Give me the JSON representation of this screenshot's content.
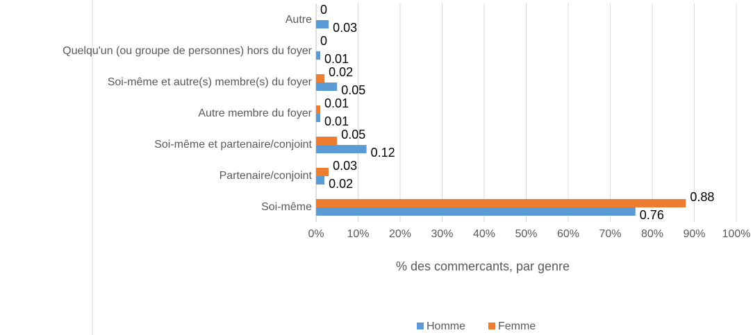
{
  "chart_data": {
    "type": "hbar",
    "categories": [
      "Autre",
      "Quelqu'un (ou groupe de personnes) hors du foyer",
      "Soi-même et autre(s) membre(s) du foyer",
      "Autre membre du foyer",
      "Soi-même et partenaire/conjoint",
      "Partenaire/conjoint",
      "Soi-même"
    ],
    "series": [
      {
        "name": "Homme",
        "color": "#5b9bd5",
        "values": [
          3,
          1,
          5,
          1,
          12,
          2,
          76
        ],
        "value_labels": [
          "0.03",
          "0.01",
          "0.05",
          "0.01",
          "0.12",
          "0.02",
          "0.76"
        ]
      },
      {
        "name": "Femme",
        "color": "#ed7d31",
        "values": [
          0,
          0,
          2,
          1,
          5,
          3,
          88
        ],
        "value_labels": [
          "0",
          "0",
          "0.02",
          "0.01",
          "0.05",
          "0.03",
          "0.88"
        ]
      }
    ],
    "xlabel": "% des commercants, par genre",
    "xlim": [
      0,
      100
    ],
    "xticks": [
      {
        "value": 0,
        "label": "0%"
      },
      {
        "value": 10,
        "label": "10%"
      },
      {
        "value": 20,
        "label": "20%"
      },
      {
        "value": 30,
        "label": "30%"
      },
      {
        "value": 40,
        "label": "40%"
      },
      {
        "value": 50,
        "label": "50%"
      },
      {
        "value": 60,
        "label": "60%"
      },
      {
        "value": 70,
        "label": "70%"
      },
      {
        "value": 80,
        "label": "80%"
      },
      {
        "value": 90,
        "label": "90%"
      },
      {
        "value": 100,
        "label": "100%"
      }
    ],
    "grid": true,
    "legend": "bottom"
  }
}
